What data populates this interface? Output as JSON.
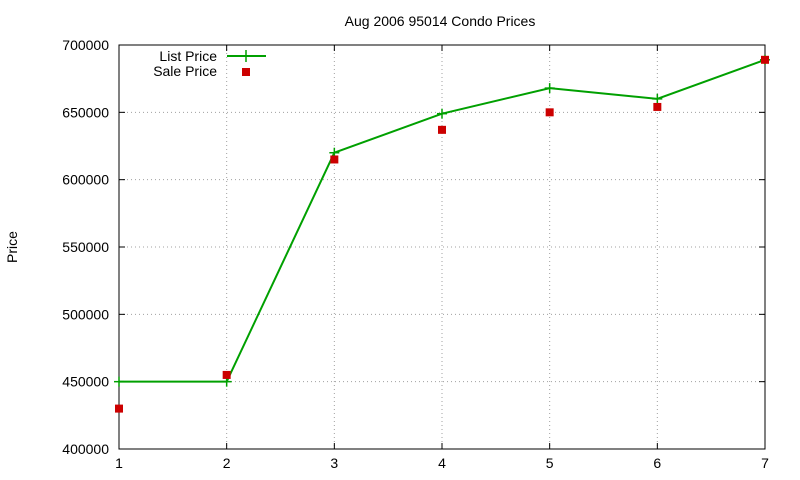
{
  "chart_data": {
    "type": "line",
    "title": "Aug 2006 95014 Condo Prices",
    "xlabel": "",
    "ylabel": "Price",
    "x": [
      1,
      2,
      3,
      4,
      5,
      6,
      7
    ],
    "xlim": [
      1,
      7
    ],
    "ylim": [
      400000,
      700000
    ],
    "xticks": [
      "1",
      "2",
      "3",
      "4",
      "5",
      "6",
      "7"
    ],
    "yticks": [
      "400000",
      "450000",
      "500000",
      "550000",
      "600000",
      "650000",
      "700000"
    ],
    "grid": true,
    "legend_position": "top-left",
    "series": [
      {
        "name": "List Price",
        "style": "line-with-plus-markers",
        "color": "#00a000",
        "values": [
          450000,
          450000,
          620000,
          649000,
          668000,
          660000,
          689000
        ]
      },
      {
        "name": "Sale Price",
        "style": "square-points",
        "color": "#cc0000",
        "values": [
          430000,
          455000,
          615000,
          637000,
          650000,
          654000,
          689000
        ]
      }
    ]
  }
}
